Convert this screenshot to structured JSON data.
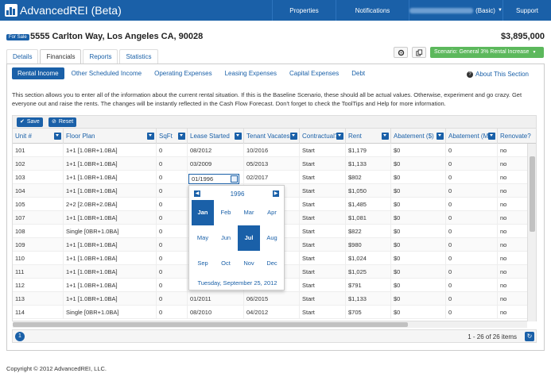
{
  "app": {
    "name": "AdvancedREI",
    "edition": "(Beta)"
  },
  "nav": {
    "properties": "Properties",
    "notifications": "Notifications",
    "account_suffix": "(Basic)",
    "support": "Support"
  },
  "property": {
    "badge": "For Sale",
    "address": "5555 Carlton Way, Los Angeles CA, 90028",
    "price": "$3,895,000"
  },
  "tabs": [
    "Details",
    "Financials",
    "Reports",
    "Statistics"
  ],
  "active_tab": "Financials",
  "scenario": "Scenario: General 3% Rental Increase",
  "subnav": [
    "Rental Income",
    "Other Scheduled Income",
    "Operating Expenses",
    "Leasing Expenses",
    "Capital Expenses",
    "Debt"
  ],
  "about": "About This Section",
  "description": "This section allows you to enter all of the information about the current rental situation. If this is the Baseline Scenario, these should all be actual values. Otherwise, experiment and go crazy. Get everyone out and raise the rents. The changes will be instantly reflected in the Cash Flow Forecast. Don't forget to check the ToolTips and Help for more information.",
  "buttons": {
    "save": "Save",
    "reset": "Reset"
  },
  "columns": [
    "Unit #",
    "Floor Plan",
    "SqFt",
    "Lease Started",
    "Tenant Vacates",
    "Contractual?",
    "Rent",
    "Abatement ($)",
    "Abatement (M)",
    "Renovate?"
  ],
  "rows": [
    [
      "101",
      "1+1 [1.0BR+1.0BA]",
      "0",
      "08/2012",
      "10/2016",
      "Start",
      "$1,179",
      "$0",
      "0",
      "no"
    ],
    [
      "102",
      "1+1 [1.0BR+1.0BA]",
      "0",
      "03/2009",
      "05/2013",
      "Start",
      "$1,133",
      "$0",
      "0",
      "no"
    ],
    [
      "103",
      "1+1 [1.0BR+1.0BA]",
      "0",
      "",
      "02/2017",
      "Start",
      "$802",
      "$0",
      "0",
      "no"
    ],
    [
      "104",
      "1+1 [1.0BR+1.0BA]",
      "0",
      "",
      "",
      "Start",
      "$1,050",
      "$0",
      "0",
      "no"
    ],
    [
      "105",
      "2+2 [2.0BR+2.0BA]",
      "0",
      "",
      "",
      "Start",
      "$1,485",
      "$0",
      "0",
      "no"
    ],
    [
      "107",
      "1+1 [1.0BR+1.0BA]",
      "0",
      "",
      "",
      "Start",
      "$1,081",
      "$0",
      "0",
      "no"
    ],
    [
      "108",
      "Single [0BR+1.0BA]",
      "0",
      "",
      "",
      "Start",
      "$822",
      "$0",
      "0",
      "no"
    ],
    [
      "109",
      "1+1 [1.0BR+1.0BA]",
      "0",
      "",
      "",
      "Start",
      "$980",
      "$0",
      "0",
      "no"
    ],
    [
      "110",
      "1+1 [1.0BR+1.0BA]",
      "0",
      "",
      "",
      "Start",
      "$1,024",
      "$0",
      "0",
      "no"
    ],
    [
      "111",
      "1+1 [1.0BR+1.0BA]",
      "0",
      "",
      "",
      "Start",
      "$1,025",
      "$0",
      "0",
      "no"
    ],
    [
      "112",
      "1+1 [1.0BR+1.0BA]",
      "0",
      "",
      "",
      "Start",
      "$791",
      "$0",
      "0",
      "no"
    ],
    [
      "113",
      "1+1 [1.0BR+1.0BA]",
      "0",
      "01/2011",
      "06/2015",
      "Start",
      "$1,133",
      "$0",
      "0",
      "no"
    ],
    [
      "114",
      "Single [0BR+1.0BA]",
      "0",
      "08/2010",
      "04/2012",
      "Start",
      "$705",
      "$0",
      "0",
      "no"
    ]
  ],
  "editing_value": "01/1996",
  "calendar": {
    "year": "1996",
    "months": [
      "Jan",
      "Feb",
      "Mar",
      "Apr",
      "May",
      "Jun",
      "Jul",
      "Aug",
      "Sep",
      "Oct",
      "Nov",
      "Dec"
    ],
    "selected": [
      "Jan",
      "Jul"
    ],
    "today": "Tuesday, September 25, 2012"
  },
  "pager": {
    "page": "1",
    "info": "1 - 26 of 26 items"
  },
  "footer": "Copyright © 2012 AdvancedREI, LLC.",
  "colors": {
    "brand": "#1a60a8",
    "scenario": "#5cb85c"
  }
}
